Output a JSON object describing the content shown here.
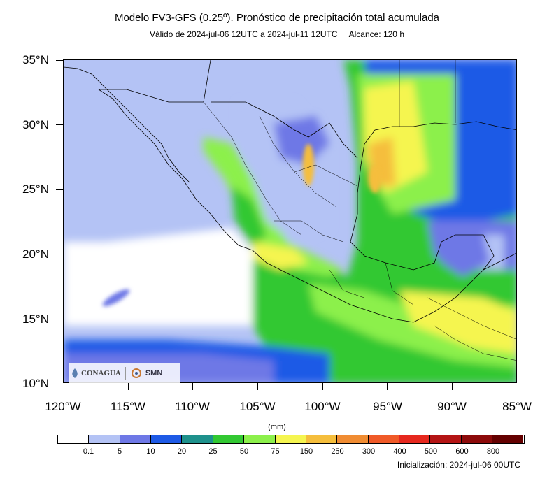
{
  "title": "Modelo FV3-GFS (0.25º). Pronóstico de precipitación total acumulada",
  "subtitle": "Válido de 2024-jul-06 12UTC a 2024-jul-11 12UTC     Alcance: 120 h",
  "axes": {
    "lat_labels": [
      "35°N",
      "30°N",
      "25°N",
      "20°N",
      "15°N",
      "10°N"
    ],
    "lon_labels": [
      "120°W",
      "115°W",
      "110°W",
      "105°W",
      "100°W",
      "95°W",
      "90°W",
      "85°W"
    ]
  },
  "colorbar": {
    "units": "(mm)",
    "labels": [
      "0.1",
      "5",
      "10",
      "20",
      "25",
      "50",
      "75",
      "150",
      "250",
      "300",
      "400",
      "500",
      "600",
      "800"
    ],
    "colors": [
      "#ffffff",
      "#b4c3f5",
      "#6e78e6",
      "#1e5ae6",
      "#1e918c",
      "#32c832",
      "#8cf04b",
      "#f5f550",
      "#f5be3c",
      "#f08c32",
      "#f05a28",
      "#e6281e",
      "#b41414",
      "#8c0a0a",
      "#640000"
    ]
  },
  "logos": {
    "conagua": "CONAGUA",
    "smn": "SMN"
  },
  "footer": "Inicialización: 2024-jul-06 00UTC"
}
